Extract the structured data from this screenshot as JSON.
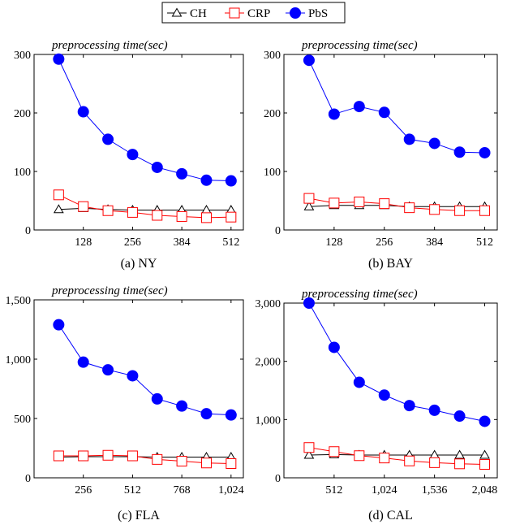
{
  "legend": {
    "items": [
      {
        "name": "CH",
        "color": "#000000",
        "marker": "triangle-open"
      },
      {
        "name": "CRP",
        "color": "#ff0000",
        "marker": "square-open"
      },
      {
        "name": "PbS",
        "color": "#0000ff",
        "marker": "circle-filled"
      }
    ]
  },
  "chart_data": [
    {
      "type": "line",
      "caption": "(a) NY",
      "ylabel": "preprocessing time(sec)",
      "xlim": [
        0,
        544
      ],
      "ylim": [
        0,
        300
      ],
      "xticks": [
        128,
        256,
        384,
        512
      ],
      "xtick_labels": [
        "128",
        "256",
        "384",
        "512"
      ],
      "yticks": [
        0,
        100,
        200,
        300
      ],
      "ytick_labels": [
        "0",
        "100",
        "200",
        "300"
      ],
      "x": [
        64,
        128,
        192,
        256,
        320,
        384,
        448,
        512
      ],
      "series": [
        {
          "name": "CH",
          "values": [
            35,
            37,
            35,
            34,
            34,
            34,
            34,
            34
          ]
        },
        {
          "name": "CRP",
          "values": [
            60,
            40,
            33,
            30,
            25,
            23,
            21,
            22
          ]
        },
        {
          "name": "PbS",
          "values": [
            292,
            202,
            155,
            129,
            107,
            96,
            85,
            84
          ]
        }
      ]
    },
    {
      "type": "line",
      "caption": "(b) BAY",
      "ylabel": "preprocessing time(sec)",
      "xlim": [
        0,
        544
      ],
      "ylim": [
        0,
        300
      ],
      "xticks": [
        128,
        256,
        384,
        512
      ],
      "xtick_labels": [
        "128",
        "256",
        "384",
        "512"
      ],
      "yticks": [
        0,
        100,
        200,
        300
      ],
      "ytick_labels": [
        "0",
        "100",
        "200",
        "300"
      ],
      "x": [
        64,
        128,
        192,
        256,
        320,
        384,
        448,
        512
      ],
      "series": [
        {
          "name": "CH",
          "values": [
            40,
            42,
            42,
            42,
            40,
            40,
            40,
            40
          ]
        },
        {
          "name": "CRP",
          "values": [
            54,
            46,
            48,
            45,
            38,
            35,
            33,
            33
          ]
        },
        {
          "name": "PbS",
          "values": [
            290,
            198,
            211,
            201,
            155,
            148,
            133,
            132
          ]
        }
      ]
    },
    {
      "type": "line",
      "caption": "(c) FLA",
      "ylabel": "preprocessing time(sec)",
      "xlim": [
        0,
        1088
      ],
      "ylim": [
        0,
        1500
      ],
      "xticks": [
        256,
        512,
        768,
        1024
      ],
      "xtick_labels": [
        "256",
        "512",
        "768",
        "1,024"
      ],
      "yticks": [
        0,
        500,
        1000,
        1500
      ],
      "ytick_labels": [
        "0",
        "500",
        "1,000",
        "1,500"
      ],
      "x": [
        128,
        256,
        384,
        512,
        640,
        768,
        896,
        1024
      ],
      "series": [
        {
          "name": "CH",
          "values": [
            175,
            178,
            178,
            178,
            175,
            175,
            175,
            175
          ]
        },
        {
          "name": "CRP",
          "values": [
            185,
            185,
            190,
            185,
            155,
            140,
            125,
            120
          ]
        },
        {
          "name": "PbS",
          "values": [
            1290,
            975,
            910,
            860,
            665,
            605,
            540,
            530
          ]
        }
      ]
    },
    {
      "type": "line",
      "caption": "(d) CAL",
      "ylabel": "preprocessing time(sec)",
      "xlim": [
        0,
        2176
      ],
      "ylim": [
        0,
        3000
      ],
      "xticks": [
        512,
        1024,
        1536,
        2048
      ],
      "xtick_labels": [
        "512",
        "1,024",
        "1,536",
        "2,048"
      ],
      "yticks": [
        0,
        1000,
        2000,
        3000
      ],
      "ytick_labels": [
        "0",
        "1,000",
        "2,000",
        "3,000"
      ],
      "x": [
        256,
        512,
        768,
        1024,
        1280,
        1536,
        1792,
        2048
      ],
      "series": [
        {
          "name": "CH",
          "values": [
            390,
            400,
            390,
            390,
            390,
            390,
            390,
            390
          ]
        },
        {
          "name": "CRP",
          "values": [
            520,
            450,
            380,
            340,
            290,
            260,
            240,
            230
          ]
        },
        {
          "name": "PbS",
          "values": [
            3000,
            2240,
            1640,
            1420,
            1240,
            1160,
            1060,
            970
          ]
        }
      ]
    }
  ]
}
